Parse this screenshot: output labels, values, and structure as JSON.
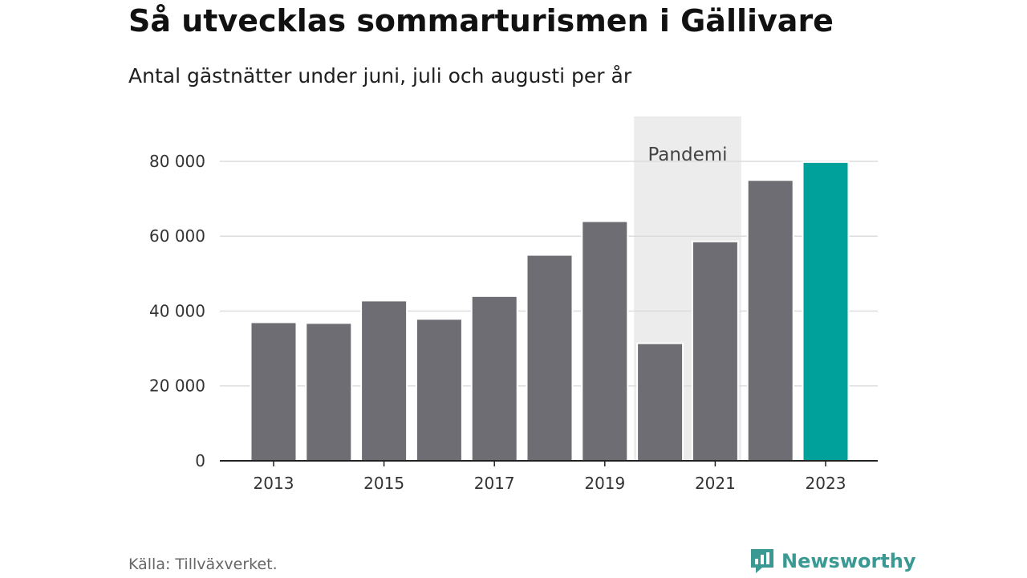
{
  "header": {
    "title": "Så utvecklas sommarturismen i Gällivare",
    "subtitle": "Antal gästnätter under juni, juli och augusti per år"
  },
  "footer": {
    "source": "Källa: Tillväxverket.",
    "brand": "Newsworthy",
    "brand_icon": "newsworthy-logo-icon"
  },
  "colors": {
    "bar": "#6e6d73",
    "highlight": "#00a19a",
    "shade": "#ececec",
    "grid": "#dcdcdc",
    "axis": "#222222",
    "brand": "#3a9a93"
  },
  "chart_data": {
    "type": "bar",
    "categories": [
      "2013",
      "2014",
      "2015",
      "2016",
      "2017",
      "2018",
      "2019",
      "2020",
      "2021",
      "2022",
      "2023"
    ],
    "values": [
      37000,
      36800,
      42800,
      37900,
      44000,
      55000,
      64000,
      31400,
      58600,
      75000,
      79800
    ],
    "highlight_category": "2023",
    "x_tick_labels": [
      "2013",
      "2015",
      "2017",
      "2019",
      "2021",
      "2023"
    ],
    "y_ticks": [
      0,
      20000,
      40000,
      60000,
      80000
    ],
    "y_tick_labels": [
      "0",
      "20 000",
      "40 000",
      "60 000",
      "80 000"
    ],
    "ylim": [
      0,
      92000
    ],
    "grid": "horizontal",
    "annotations": [
      {
        "label": "Pandemi",
        "from": "2020",
        "to": "2021"
      }
    ]
  }
}
